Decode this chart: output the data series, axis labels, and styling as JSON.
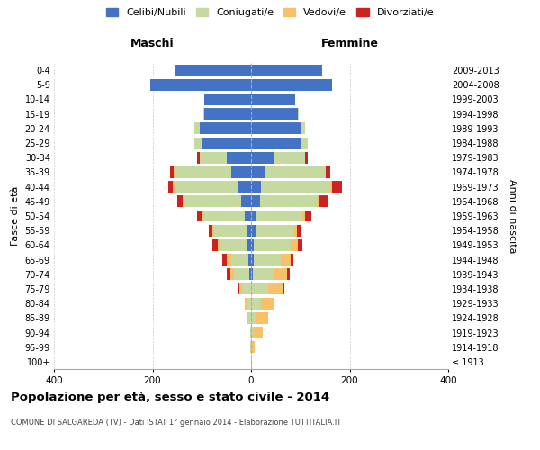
{
  "age_groups": [
    "100+",
    "95-99",
    "90-94",
    "85-89",
    "80-84",
    "75-79",
    "70-74",
    "65-69",
    "60-64",
    "55-59",
    "50-54",
    "45-49",
    "40-44",
    "35-39",
    "30-34",
    "25-29",
    "20-24",
    "15-19",
    "10-14",
    "5-9",
    "0-4"
  ],
  "birth_years": [
    "≤ 1913",
    "1914-1918",
    "1919-1923",
    "1924-1928",
    "1929-1933",
    "1934-1938",
    "1939-1943",
    "1944-1948",
    "1949-1953",
    "1954-1958",
    "1959-1963",
    "1964-1968",
    "1969-1973",
    "1974-1978",
    "1979-1983",
    "1984-1988",
    "1989-1993",
    "1994-1998",
    "1999-2003",
    "2004-2008",
    "2009-2013"
  ],
  "colors": {
    "celibi": "#4472C4",
    "coniugati": "#C5D9A0",
    "vedovi": "#F9C167",
    "divorziati": "#CC2222"
  },
  "maschi": {
    "celibi": [
      0,
      0,
      0,
      0,
      0,
      0,
      4,
      5,
      8,
      10,
      12,
      20,
      25,
      40,
      50,
      100,
      105,
      95,
      95,
      205,
      155
    ],
    "coniugati": [
      0,
      1,
      2,
      5,
      8,
      18,
      30,
      35,
      55,
      65,
      85,
      115,
      130,
      115,
      55,
      15,
      10,
      2,
      0,
      0,
      0
    ],
    "vedovi": [
      0,
      0,
      0,
      3,
      5,
      5,
      8,
      10,
      5,
      3,
      3,
      3,
      3,
      2,
      0,
      0,
      0,
      0,
      0,
      0,
      0
    ],
    "divorziati": [
      0,
      0,
      0,
      0,
      0,
      5,
      8,
      8,
      10,
      8,
      10,
      12,
      10,
      8,
      5,
      0,
      0,
      0,
      0,
      0,
      0
    ]
  },
  "femmine": {
    "celibi": [
      0,
      0,
      0,
      0,
      0,
      0,
      3,
      5,
      5,
      10,
      10,
      18,
      20,
      30,
      45,
      100,
      100,
      95,
      90,
      165,
      145
    ],
    "coniugati": [
      0,
      0,
      5,
      10,
      20,
      35,
      45,
      55,
      75,
      75,
      95,
      115,
      140,
      120,
      65,
      15,
      10,
      2,
      0,
      0,
      0
    ],
    "vedovi": [
      2,
      8,
      18,
      25,
      25,
      30,
      25,
      20,
      15,
      8,
      5,
      5,
      5,
      2,
      0,
      0,
      0,
      0,
      0,
      0,
      0
    ],
    "divorziati": [
      0,
      0,
      0,
      0,
      0,
      3,
      5,
      5,
      10,
      8,
      12,
      18,
      20,
      8,
      5,
      0,
      0,
      0,
      0,
      0,
      0
    ]
  },
  "title": "Popolazione per età, sesso e stato civile - 2014",
  "subtitle": "COMUNE DI SALGAREDA (TV) - Dati ISTAT 1° gennaio 2014 - Elaborazione TUTTITALIA.IT",
  "xlabel_left": "Maschi",
  "xlabel_right": "Femmine",
  "ylabel_left": "Fasce di età",
  "ylabel_right": "Anni di nascita",
  "xlim": 400,
  "legend_labels": [
    "Celibi/Nubili",
    "Coniugati/e",
    "Vedovi/e",
    "Divorziati/e"
  ],
  "bar_height": 0.8,
  "fig_width": 6.0,
  "fig_height": 5.0,
  "dpi": 100
}
